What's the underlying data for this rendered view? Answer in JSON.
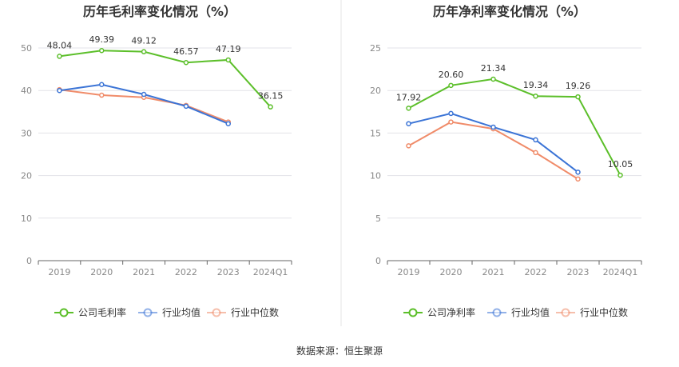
{
  "source_text": "数据来源：恒生聚源",
  "colors": {
    "company": "#5cbf2a",
    "industry_avg": "#3b74d6",
    "industry_median": "#f08c6a",
    "grid": "#e3e3e8",
    "axis": "#666666",
    "divider": "#e6e6e6"
  },
  "chart_data": [
    {
      "type": "line",
      "title": "历年毛利率变化情况（%）",
      "categories": [
        "2019",
        "2020",
        "2021",
        "2022",
        "2023",
        "2024Q1"
      ],
      "ylim": [
        0,
        50
      ],
      "yticks": [
        0,
        10,
        20,
        30,
        40,
        50
      ],
      "grid": true,
      "legend_position": "bottom",
      "series": [
        {
          "name": "公司毛利率",
          "color_key": "company",
          "values": [
            48.04,
            49.39,
            49.12,
            46.57,
            47.19,
            36.15
          ],
          "labels": [
            "48.04",
            "49.39",
            "49.12",
            "46.57",
            "47.19",
            "36.15"
          ]
        },
        {
          "name": "行业均值",
          "color_key": "industry_avg",
          "values": [
            40.0,
            41.4,
            39.1,
            36.3,
            32.2,
            null
          ]
        },
        {
          "name": "行业中位数",
          "color_key": "industry_median",
          "values": [
            40.2,
            38.9,
            38.4,
            36.5,
            32.6,
            null
          ]
        }
      ]
    },
    {
      "type": "line",
      "title": "历年净利率变化情况（%）",
      "categories": [
        "2019",
        "2020",
        "2021",
        "2022",
        "2023",
        "2024Q1"
      ],
      "ylim": [
        0,
        25
      ],
      "yticks": [
        0,
        5,
        10,
        15,
        20,
        25
      ],
      "grid": true,
      "legend_position": "bottom",
      "series": [
        {
          "name": "公司净利率",
          "color_key": "company",
          "values": [
            17.92,
            20.6,
            21.34,
            19.34,
            19.26,
            10.05
          ],
          "labels": [
            "17.92",
            "20.60",
            "21.34",
            "19.34",
            "19.26",
            "10.05"
          ]
        },
        {
          "name": "行业均值",
          "color_key": "industry_avg",
          "values": [
            16.1,
            17.3,
            15.7,
            14.2,
            10.4,
            null
          ]
        },
        {
          "name": "行业中位数",
          "color_key": "industry_median",
          "values": [
            13.5,
            16.3,
            15.5,
            12.7,
            9.6,
            null
          ]
        }
      ]
    }
  ]
}
